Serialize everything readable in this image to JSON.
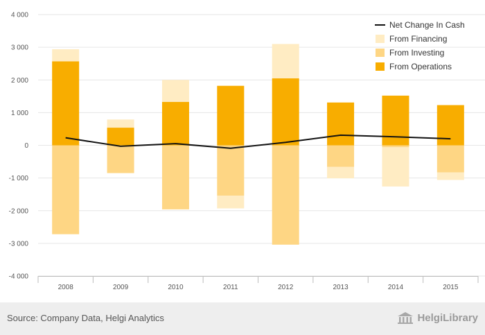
{
  "chart_data": {
    "type": "bar",
    "title": "",
    "xlabel": "",
    "ylabel": "",
    "categories": [
      "2008",
      "2009",
      "2010",
      "2011",
      "2012",
      "2013",
      "2014",
      "2015"
    ],
    "ylim": [
      -4000,
      4000
    ],
    "yticks": [
      4000,
      3000,
      2000,
      1000,
      0,
      -1000,
      -2000,
      -3000,
      -4000
    ],
    "ytick_labels": [
      "4 000",
      "3 000",
      "2 000",
      "1 000",
      "0",
      "-1 000",
      "-2 000",
      "-3 000",
      "-4 000"
    ],
    "grid": true,
    "legend_position": "top-right",
    "series": [
      {
        "name": "From Operations",
        "kind": "stacked-bar",
        "color": "#f8ad00",
        "values": [
          2570,
          540,
          1330,
          1820,
          2050,
          1310,
          1520,
          1230
        ]
      },
      {
        "name": "From Investing",
        "kind": "stacked-bar",
        "color": "#fed684",
        "values": [
          -2720,
          -850,
          -1960,
          -1540,
          -3040,
          -660,
          -60,
          -830
        ]
      },
      {
        "name": "From Financing",
        "kind": "stacked-bar",
        "color": "#ffecc3",
        "values": [
          370,
          250,
          670,
          -390,
          1050,
          -350,
          -1200,
          -230
        ]
      },
      {
        "name": "Net Change In Cash",
        "kind": "line",
        "color": "#111111",
        "values": [
          230,
          -30,
          50,
          -90,
          90,
          310,
          260,
          200
        ]
      }
    ],
    "legend_order": [
      "Net Change In Cash",
      "From Financing",
      "From Investing",
      "From Operations"
    ]
  },
  "footer": {
    "source": "Source: Company Data, Helgi Analytics",
    "logo_text": "HelgiLibrary"
  }
}
